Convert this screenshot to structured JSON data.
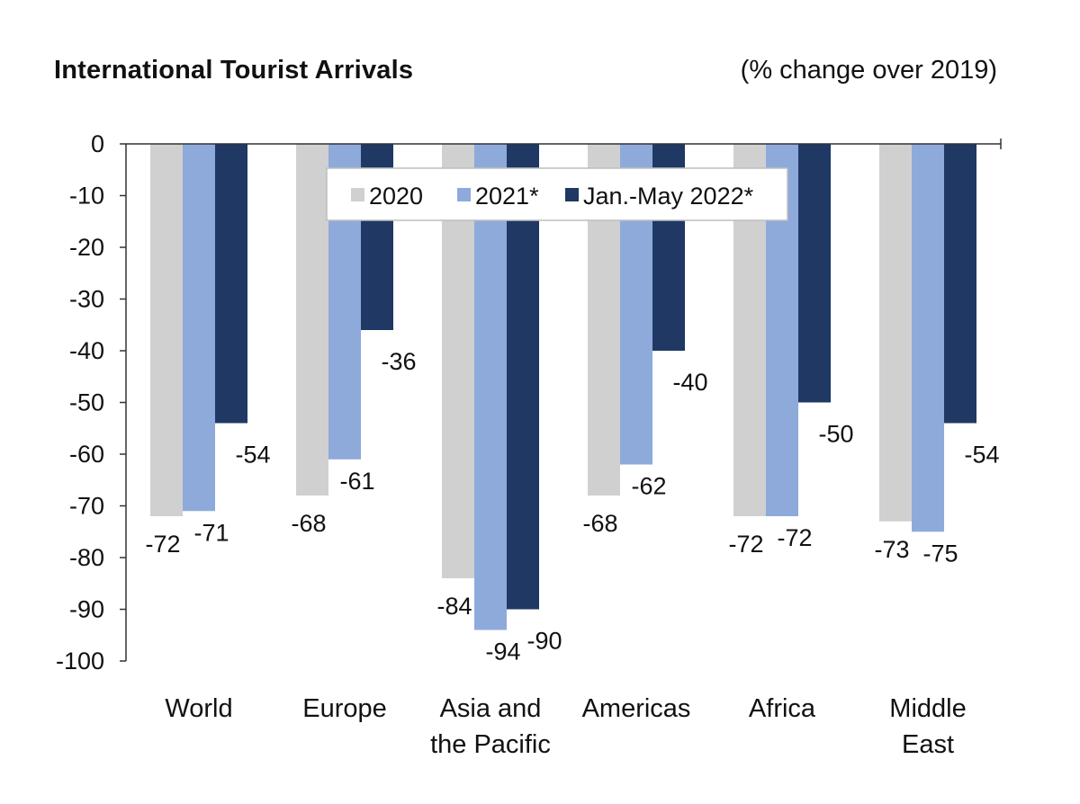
{
  "chart_data": {
    "type": "bar",
    "title": "International Tourist Arrivals",
    "subtitle": "(% change over 2019)",
    "xlabel": "",
    "ylabel": "",
    "ylim": [
      -100,
      0
    ],
    "yticks": [
      0,
      -10,
      -20,
      -30,
      -40,
      -50,
      -60,
      -70,
      -80,
      -90,
      -100
    ],
    "grid": false,
    "legend_position": "top-center",
    "categories": [
      [
        "World"
      ],
      [
        "Europe"
      ],
      [
        "Asia and",
        "the Pacific"
      ],
      [
        "Americas"
      ],
      [
        "Africa"
      ],
      [
        "Middle",
        "East"
      ]
    ],
    "series": [
      {
        "name": "2020",
        "color": "#d0d0d0",
        "values": [
          -72,
          -68,
          -84,
          -68,
          -72,
          -73
        ]
      },
      {
        "name": "2021*",
        "color": "#8eaadb",
        "values": [
          -71,
          -61,
          -94,
          -62,
          -72,
          -75
        ]
      },
      {
        "name": "Jan.-May 2022*",
        "color": "#1f3864",
        "values": [
          -54,
          -36,
          -90,
          -40,
          -50,
          -54
        ]
      }
    ]
  }
}
